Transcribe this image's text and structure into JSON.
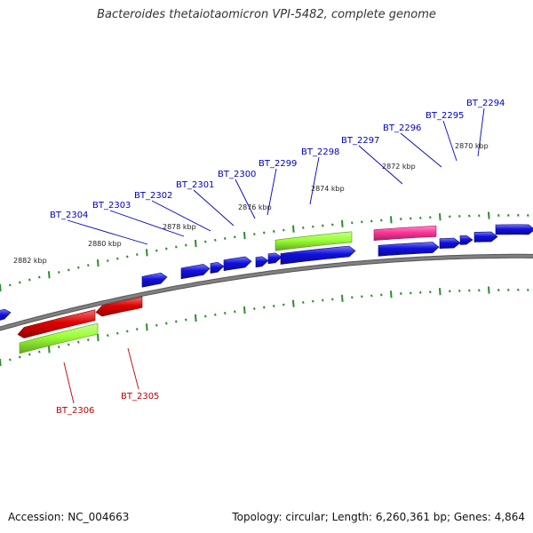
{
  "title": "Bacteroides thetaiotaomicron VPI-5482, complete genome",
  "accession": "Accession: NC_004663",
  "genome_info": "Topology: circular; Length: 6,260,361 bp; Genes: 4,864",
  "colors": {
    "backbone": "#808080",
    "tick": "#2e8b2e",
    "cds_forward": "#1010e0",
    "cds_reverse": "#e00000",
    "rna_green": "#99ff33",
    "rna_pink": "#ff3399",
    "label_forward": "#0000c0",
    "label_reverse": "#c00000"
  },
  "scale_labels": [
    "2870 kbp",
    "2872 kbp",
    "2874 kbp",
    "2876 kbp",
    "2878 kbp",
    "2880 kbp",
    "2882 kbp"
  ],
  "gene_labels": [
    {
      "name": "BT_2294",
      "strand": "forward"
    },
    {
      "name": "BT_2295",
      "strand": "forward"
    },
    {
      "name": "BT_2296",
      "strand": "forward"
    },
    {
      "name": "BT_2297",
      "strand": "forward"
    },
    {
      "name": "BT_2298",
      "strand": "forward"
    },
    {
      "name": "BT_2299",
      "strand": "forward"
    },
    {
      "name": "BT_2300",
      "strand": "forward"
    },
    {
      "name": "BT_2301",
      "strand": "forward"
    },
    {
      "name": "BT_2302",
      "strand": "forward"
    },
    {
      "name": "BT_2303",
      "strand": "forward"
    },
    {
      "name": "BT_2304",
      "strand": "forward"
    },
    {
      "name": "BT_2305",
      "strand": "reverse"
    },
    {
      "name": "BT_2306",
      "strand": "reverse"
    }
  ]
}
